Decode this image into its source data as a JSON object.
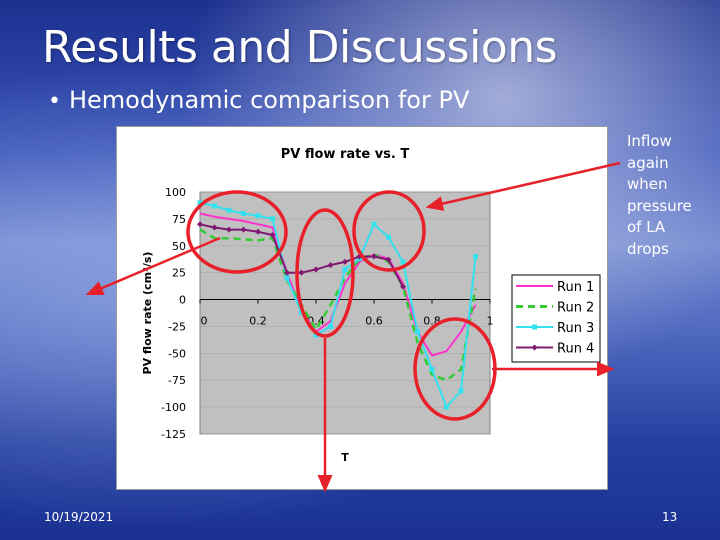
{
  "slide": {
    "title": "Results and Discussions",
    "bullet": "Hemodynamic comparison for PV",
    "side_note_lines": [
      "Inflow",
      "again",
      "when",
      "pressure",
      "of LA",
      "drops"
    ],
    "footer_date": "10/19/2021",
    "page_number": "13",
    "annotation_color": "#e8202a"
  },
  "chart_data": {
    "type": "line",
    "title": "PV flow rate vs. T",
    "xlabel": "T",
    "ylabel": "PV flow rate (cm^3/s)",
    "xlim": [
      0,
      1
    ],
    "ylim": [
      -125,
      100
    ],
    "xticks": [
      "0",
      "0.2",
      "0.4",
      "0.6",
      "0.8",
      "1"
    ],
    "yticks": [
      "100",
      "75",
      "50",
      "25",
      "0",
      "-25",
      "-50",
      "-75",
      "-100",
      "-125"
    ],
    "plot_background": "#c0c0c0",
    "legend_position": "right",
    "series": [
      {
        "name": "Run 1",
        "color": "#ff33cc",
        "dash": "solid",
        "marker": "none",
        "points": [
          [
            0,
            80
          ],
          [
            0.05,
            77
          ],
          [
            0.1,
            75
          ],
          [
            0.15,
            73
          ],
          [
            0.2,
            70
          ],
          [
            0.25,
            67
          ],
          [
            0.3,
            25
          ],
          [
            0.35,
            -10
          ],
          [
            0.4,
            -30
          ],
          [
            0.45,
            -20
          ],
          [
            0.5,
            15
          ],
          [
            0.55,
            35
          ],
          [
            0.6,
            42
          ],
          [
            0.65,
            38
          ],
          [
            0.7,
            15
          ],
          [
            0.75,
            -30
          ],
          [
            0.8,
            -52
          ],
          [
            0.85,
            -48
          ],
          [
            0.9,
            -30
          ],
          [
            0.95,
            -5
          ]
        ]
      },
      {
        "name": "Run 2",
        "color": "#33cc33",
        "dash": "dashed",
        "marker": "none",
        "points": [
          [
            0,
            65
          ],
          [
            0.05,
            57
          ],
          [
            0.1,
            57
          ],
          [
            0.15,
            56
          ],
          [
            0.2,
            55
          ],
          [
            0.25,
            57
          ],
          [
            0.3,
            18
          ],
          [
            0.35,
            -5
          ],
          [
            0.4,
            -28
          ],
          [
            0.45,
            -5
          ],
          [
            0.5,
            20
          ],
          [
            0.55,
            38
          ],
          [
            0.6,
            42
          ],
          [
            0.65,
            35
          ],
          [
            0.7,
            12
          ],
          [
            0.75,
            -40
          ],
          [
            0.8,
            -70
          ],
          [
            0.85,
            -75
          ],
          [
            0.9,
            -65
          ],
          [
            0.95,
            10
          ]
        ]
      },
      {
        "name": "Run 3",
        "color": "#33e0ee",
        "dash": "solid",
        "marker": "square",
        "points": [
          [
            0,
            90
          ],
          [
            0.05,
            87
          ],
          [
            0.1,
            83
          ],
          [
            0.15,
            80
          ],
          [
            0.2,
            78
          ],
          [
            0.25,
            75
          ],
          [
            0.3,
            20
          ],
          [
            0.35,
            -12
          ],
          [
            0.4,
            -33
          ],
          [
            0.45,
            -25
          ],
          [
            0.5,
            28
          ],
          [
            0.55,
            38
          ],
          [
            0.6,
            70
          ],
          [
            0.65,
            58
          ],
          [
            0.7,
            35
          ],
          [
            0.75,
            -30
          ],
          [
            0.8,
            -65
          ],
          [
            0.85,
            -100
          ],
          [
            0.9,
            -85
          ],
          [
            0.95,
            40
          ]
        ]
      },
      {
        "name": "Run 4",
        "color": "#801870",
        "dash": "solid",
        "marker": "diamond",
        "points": [
          [
            0,
            70
          ],
          [
            0.05,
            67
          ],
          [
            0.1,
            65
          ],
          [
            0.15,
            65
          ],
          [
            0.2,
            63
          ],
          [
            0.25,
            60
          ],
          [
            0.3,
            25
          ],
          [
            0.35,
            25
          ],
          [
            0.4,
            28
          ],
          [
            0.45,
            32
          ],
          [
            0.5,
            35
          ],
          [
            0.55,
            40
          ],
          [
            0.6,
            40
          ],
          [
            0.65,
            37
          ],
          [
            0.7,
            12
          ]
        ]
      }
    ]
  }
}
